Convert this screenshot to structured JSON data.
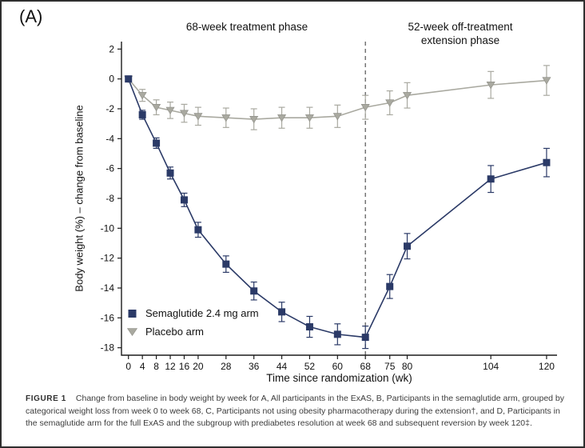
{
  "panel_label": "(A)",
  "phase_labels": {
    "treatment": "68-week treatment phase",
    "extension": "52-week off-treatment extension phase"
  },
  "legend": [
    {
      "label": "Semaglutide 2.4 mg arm",
      "marker": "square",
      "color": "#2b3a67"
    },
    {
      "label": "Placebo arm",
      "marker": "triangle-down",
      "color": "#a9a9a0"
    }
  ],
  "chart_data": {
    "type": "line",
    "title": "",
    "xlabel": "Time since randomization (wk)",
    "ylabel": "Body weight (%) – change from baseline",
    "x": [
      0,
      4,
      8,
      12,
      16,
      20,
      28,
      36,
      44,
      52,
      60,
      68,
      75,
      80,
      104,
      120
    ],
    "x_ticks": [
      0,
      4,
      8,
      12,
      16,
      20,
      28,
      36,
      44,
      52,
      60,
      68,
      75,
      80,
      104,
      120
    ],
    "y_ticks": [
      2,
      0,
      -2,
      -4,
      -6,
      -8,
      -10,
      -12,
      -14,
      -16,
      -18
    ],
    "ylim": [
      -18.5,
      2.5
    ],
    "xlim": [
      -2,
      123
    ],
    "vline_x": 68,
    "grid": false,
    "legend_position": "lower-left",
    "series": [
      {
        "name": "Semaglutide 2.4 mg arm",
        "marker": "square",
        "color": "#2b3a67",
        "values": [
          0,
          -2.4,
          -4.3,
          -6.3,
          -8.1,
          -10.1,
          -12.4,
          -14.2,
          -15.6,
          -16.6,
          -17.1,
          -17.3,
          -13.9,
          -11.2,
          -6.7,
          -5.6
        ],
        "errors": [
          0.15,
          0.3,
          0.35,
          0.4,
          0.45,
          0.5,
          0.55,
          0.6,
          0.65,
          0.7,
          0.7,
          0.75,
          0.8,
          0.85,
          0.9,
          0.95
        ]
      },
      {
        "name": "Placebo arm",
        "marker": "triangle-down",
        "color": "#a9a9a0",
        "values": [
          0,
          -1.1,
          -1.9,
          -2.1,
          -2.3,
          -2.5,
          -2.6,
          -2.7,
          -2.6,
          -2.6,
          -2.5,
          -1.9,
          -1.6,
          -1.1,
          -0.4,
          -0.1
        ],
        "errors": [
          0.15,
          0.4,
          0.5,
          0.55,
          0.6,
          0.6,
          0.65,
          0.7,
          0.7,
          0.7,
          0.75,
          0.8,
          0.8,
          0.85,
          0.9,
          1.0
        ]
      }
    ]
  },
  "caption": {
    "label": "FIGURE 1",
    "text": "Change from baseline in body weight by week for A, All participants in the ExAS, B, Participants in the semaglutide arm, grouped by categorical weight loss from week 0 to week 68, C, Participants not using obesity pharmacotherapy during the extension†, and D, Participants in the semaglutide arm for the full ExAS and the subgroup with prediabetes resolution at week 68 and subsequent reversion by week 120‡."
  }
}
